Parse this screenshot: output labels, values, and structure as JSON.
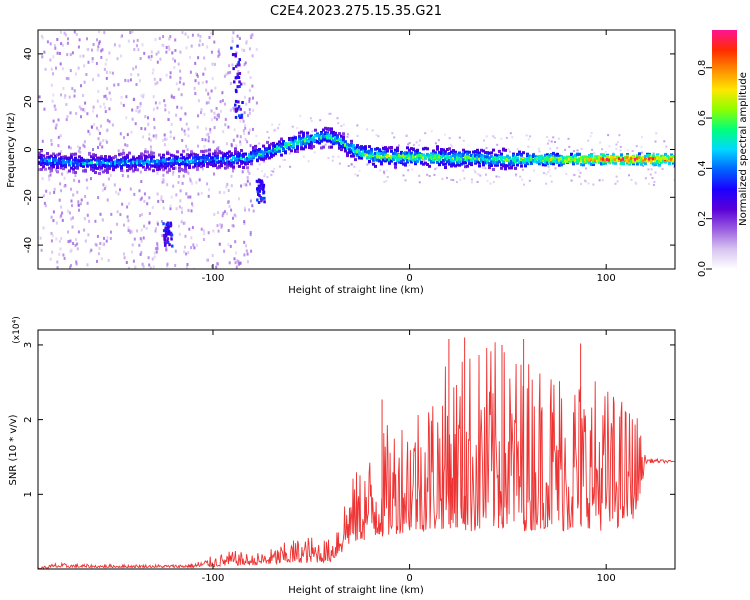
{
  "figure_title": "C2E4.2023.275.15.35.G21",
  "chart_data": [
    {
      "type": "heatmap",
      "xlabel": "Height of straight line (km)",
      "ylabel": "Frequency (Hz)",
      "xlim": [
        -189,
        135
      ],
      "ylim": [
        -50,
        50
      ],
      "x_ticks": [
        -100,
        0,
        100
      ],
      "x_tick_labels": [
        "-100",
        "0",
        "100"
      ],
      "y_ticks": [
        -40,
        -20,
        0,
        20,
        40
      ],
      "y_tick_labels": [
        "-40",
        "-20",
        "0",
        "20",
        "40"
      ],
      "colorbar": {
        "label": "Normalized spectral amplitude",
        "range": [
          0,
          0.95
        ],
        "ticks": [
          0,
          0.2,
          0.4,
          0.6,
          0.8
        ],
        "tick_labels": [
          "0.0",
          "0.2",
          "0.4",
          "0.6",
          "0.8"
        ],
        "colormap": [
          "#ffffff",
          "#d8c4f0",
          "#9a5ce0",
          "#5a00d8",
          "#1c00ff",
          "#0064ff",
          "#00d8ff",
          "#00ff7a",
          "#8cff00",
          "#ffe600",
          "#ff8c00",
          "#ff2a00",
          "#ff1493"
        ]
      },
      "ridge": {
        "description_free": true,
        "x": [
          -189,
          -170,
          -150,
          -130,
          -110,
          -95,
          -85,
          -78,
          -72,
          -66,
          -60,
          -54,
          -48,
          -42,
          -38,
          -34,
          -30,
          -25,
          -20,
          -10,
          0,
          10,
          20,
          30,
          40,
          50,
          60,
          70,
          80,
          90,
          100,
          110,
          120,
          135
        ],
        "freq": [
          -4,
          -5,
          -5,
          -4.5,
          -4,
          -3.5,
          -3,
          -1.5,
          0,
          1.5,
          3,
          4.5,
          5.5,
          6,
          5,
          3,
          1,
          -1,
          -2,
          -2.5,
          -2.5,
          -2.5,
          -3,
          -3,
          -3.5,
          -3.5,
          -3.5,
          -3.5,
          -3.5,
          -3.5,
          -3.5,
          -3.5,
          -3.5,
          -3.5
        ],
        "peak_amplitude": [
          0.45,
          0.5,
          0.5,
          0.5,
          0.5,
          0.5,
          0.55,
          0.55,
          0.55,
          0.6,
          0.6,
          0.65,
          0.6,
          0.6,
          0.6,
          0.6,
          0.65,
          0.65,
          0.7,
          0.7,
          0.7,
          0.7,
          0.65,
          0.65,
          0.65,
          0.65,
          0.65,
          0.7,
          0.75,
          0.8,
          0.9,
          0.9,
          0.9,
          0.8
        ]
      },
      "features": [
        {
          "x": -87,
          "freq_range": [
            14,
            44
          ],
          "amplitude": 0.35
        },
        {
          "x": -76,
          "freq_range": [
            -22,
            -12
          ],
          "amplitude": 0.35
        },
        {
          "x": -123,
          "freq_range": [
            -40,
            -30
          ],
          "amplitude": 0.35
        }
      ]
    },
    {
      "type": "line",
      "xlabel": "Height of straight line (km)",
      "ylabel": "SNR (10 * v/v)",
      "y_multiplier": "(x10⁴)",
      "xlim": [
        -189,
        135
      ],
      "ylim": [
        0,
        3.2
      ],
      "x_ticks": [
        -100,
        0,
        100
      ],
      "x_tick_labels": [
        "-100",
        "0",
        "100"
      ],
      "y_ticks": [
        1,
        2,
        3
      ],
      "y_tick_labels": [
        "1",
        "2",
        "3"
      ],
      "series": [
        {
          "color": "#ee3333",
          "envelope_x": [
            -189,
            -180,
            -160,
            -140,
            -120,
            -110,
            -100,
            -90,
            -80,
            -70,
            -60,
            -50,
            -40,
            -35,
            -30,
            -20,
            -10,
            0,
            10,
            20,
            30,
            40,
            50,
            60,
            70,
            80,
            90,
            100,
            110,
            115,
            120,
            122,
            135
          ],
          "envelope_min": [
            0.0,
            0.02,
            0.02,
            0.02,
            0.02,
            0.02,
            0.03,
            0.05,
            0.05,
            0.06,
            0.08,
            0.08,
            0.1,
            0.2,
            0.35,
            0.4,
            0.45,
            0.5,
            0.5,
            0.55,
            0.5,
            0.5,
            0.55,
            0.5,
            0.55,
            0.5,
            0.55,
            0.5,
            0.6,
            0.7,
            1.4,
            1.42,
            1.42
          ],
          "envelope_max": [
            0.02,
            0.08,
            0.06,
            0.06,
            0.06,
            0.08,
            0.18,
            0.25,
            0.2,
            0.28,
            0.4,
            0.45,
            0.4,
            0.95,
            1.2,
            1.6,
            2.0,
            2.3,
            2.5,
            2.8,
            3.0,
            3.1,
            3.0,
            2.9,
            2.9,
            2.8,
            2.7,
            2.5,
            2.3,
            2.2,
            1.5,
            1.48,
            1.45
          ],
          "peaks": [
            {
              "x": -14,
              "y": 2.27
            },
            {
              "x": 20,
              "y": 3.08
            },
            {
              "x": 28,
              "y": 3.1
            },
            {
              "x": 47,
              "y": 3.0
            },
            {
              "x": 58,
              "y": 3.08
            },
            {
              "x": 87,
              "y": 3.02
            }
          ]
        }
      ]
    }
  ]
}
